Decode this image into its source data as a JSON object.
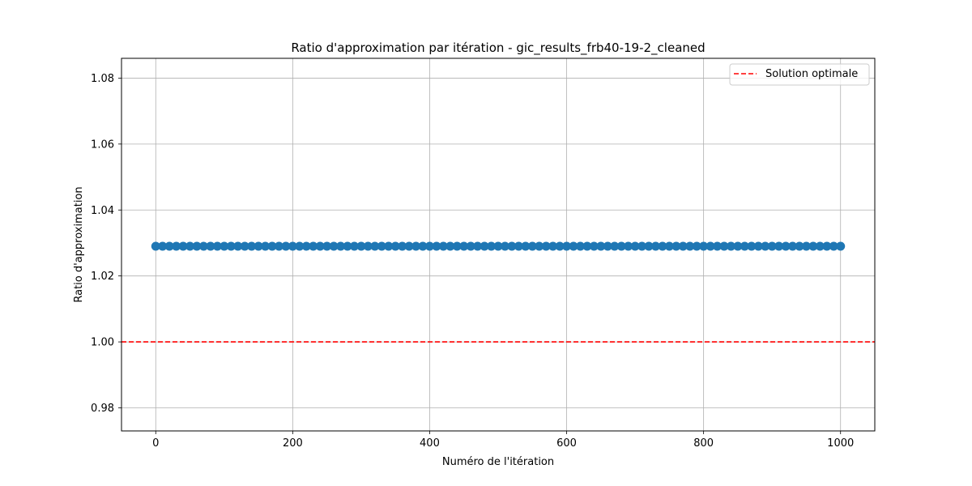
{
  "chart_data": {
    "type": "scatter",
    "title": "Ratio d'approximation par itération - gic_results_frb40-19-2_cleaned",
    "xlabel": "Numéro de l'itération",
    "ylabel": "Ratio d'approximation",
    "xlim": [
      -50,
      1050
    ],
    "ylim": [
      0.973,
      1.086
    ],
    "x_ticks": [
      0,
      200,
      400,
      600,
      800,
      1000
    ],
    "y_ticks": [
      0.98,
      1.0,
      1.02,
      1.04,
      1.06,
      1.08
    ],
    "x_tick_labels": [
      "0",
      "200",
      "400",
      "600",
      "800",
      "1000"
    ],
    "y_tick_labels": [
      "0.98",
      "1.00",
      "1.02",
      "1.04",
      "1.06",
      "1.08"
    ],
    "grid": true,
    "legend_position": "top-right",
    "series": [
      {
        "kind": "line-with-markers",
        "color": "#1f77b4",
        "x_start": 0,
        "x_end": 1000,
        "x_step": 10,
        "constant_y": 1.029
      }
    ],
    "reference_lines": [
      {
        "name": "Solution optimale",
        "orientation": "horizontal",
        "y": 1.0,
        "style": "dashed",
        "color": "#ff0000"
      }
    ]
  }
}
